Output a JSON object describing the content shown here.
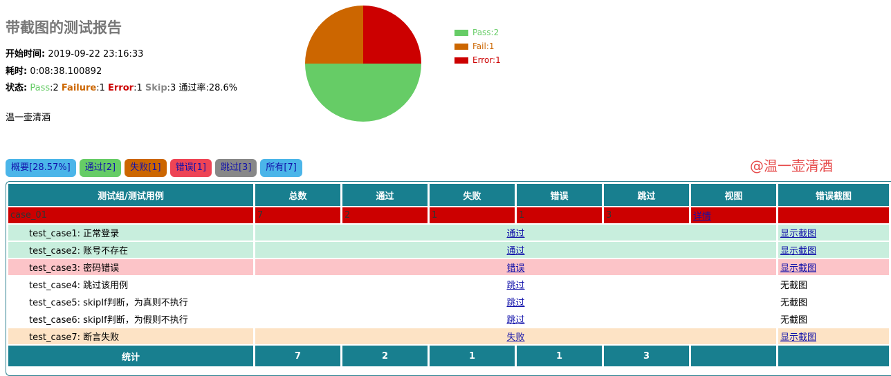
{
  "report": {
    "title": "带截图的测试报告",
    "start_label": "开始时间:",
    "start_value": "2019-09-22 23:16:33",
    "duration_label": "耗时:",
    "duration_value": "0:08:38.100892",
    "status_label": "状态:",
    "status_pass_label": "Pass",
    "status_pass_value": ":2",
    "status_fail_label": "Failure",
    "status_fail_value": ":1",
    "status_error_label": "Error",
    "status_error_value": ":1",
    "status_skip_label": "Skip",
    "status_skip_value": ":3",
    "status_rate": "通过率:28.6%",
    "author": "温一壶清酒"
  },
  "chart_data": {
    "type": "pie",
    "slices": [
      {
        "label": "Pass:2",
        "value": 2,
        "color": "#66cc66"
      },
      {
        "label": "Fail:1",
        "value": 1,
        "color": "#cc6600"
      },
      {
        "label": "Error:1",
        "value": 1,
        "color": "#cc0000"
      }
    ]
  },
  "tabs": [
    {
      "label": "概要[28.57%]",
      "bg": "#4bb5e9"
    },
    {
      "label": "通过[2]",
      "bg": "#66cc66"
    },
    {
      "label": "失败[1]",
      "bg": "#cc6600"
    },
    {
      "label": "错误[1]",
      "bg": "#ee4455"
    },
    {
      "label": "跳过[3]",
      "bg": "#888888"
    },
    {
      "label": "所有[7]",
      "bg": "#4bb5e9"
    }
  ],
  "watermark": "@温一壶清酒",
  "table": {
    "headers": [
      "测试组/测试用例",
      "总数",
      "通过",
      "失败",
      "错误",
      "跳过",
      "视图",
      "错误截图"
    ],
    "suite": {
      "name": "case_01",
      "total": "7",
      "pass": "2",
      "fail": "1",
      "error": "1",
      "skip": "3",
      "view": "详情",
      "shot": ""
    },
    "cases": [
      {
        "name": "test_case1: 正常登录",
        "status": "通过",
        "shot": "显示截图",
        "shot_link": true,
        "kind": "pass"
      },
      {
        "name": "test_case2: 账号不存在",
        "status": "通过",
        "shot": "显示截图",
        "shot_link": true,
        "kind": "pass"
      },
      {
        "name": "test_case3: 密码错误",
        "status": "错误",
        "shot": "显示截图",
        "shot_link": true,
        "kind": "err"
      },
      {
        "name": "test_case4: 跳过该用例",
        "status": "跳过",
        "shot": "无截图",
        "shot_link": false,
        "kind": "skip"
      },
      {
        "name": "test_case5: skipIf判断，为真则不执行",
        "status": "跳过",
        "shot": "无截图",
        "shot_link": false,
        "kind": "skip"
      },
      {
        "name": "test_case6: skipIf判断，为假则不执行",
        "status": "跳过",
        "shot": "无截图",
        "shot_link": false,
        "kind": "skip"
      },
      {
        "name": "test_case7: 断言失败",
        "status": "失败",
        "shot": "显示截图",
        "shot_link": true,
        "kind": "fail"
      }
    ],
    "total": {
      "label": "统计",
      "total": "7",
      "pass": "2",
      "fail": "1",
      "error": "1",
      "skip": "3"
    }
  }
}
